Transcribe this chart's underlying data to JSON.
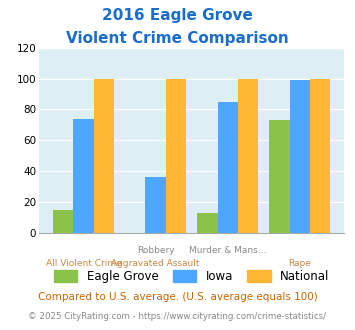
{
  "title_line1": "2016 Eagle Grove",
  "title_line2": "Violent Crime Comparison",
  "cat_top": [
    "",
    "Robbery",
    "Murder & Mans...",
    ""
  ],
  "cat_bottom": [
    "All Violent Crime",
    "Aggravated Assault",
    "",
    "Rape"
  ],
  "eagle_grove": [
    15,
    0,
    13,
    73
  ],
  "iowa": [
    74,
    36,
    85,
    99
  ],
  "national": [
    100,
    100,
    100,
    100
  ],
  "eagle_grove_color": "#8bc34a",
  "iowa_color": "#4da6ff",
  "national_color": "#ffb733",
  "bg_color": "#ddeef5",
  "ylim": [
    0,
    120
  ],
  "yticks": [
    0,
    20,
    40,
    60,
    80,
    100,
    120
  ],
  "footnote1": "Compared to U.S. average. (U.S. average equals 100)",
  "footnote2": "© 2025 CityRating.com - https://www.cityrating.com/crime-statistics/",
  "title_color": "#1a6dcc",
  "footnote1_color": "#cc6600",
  "footnote2_color": "#888888",
  "xlabel_top_color": "#888888",
  "xlabel_bot_color": "#cc8844"
}
